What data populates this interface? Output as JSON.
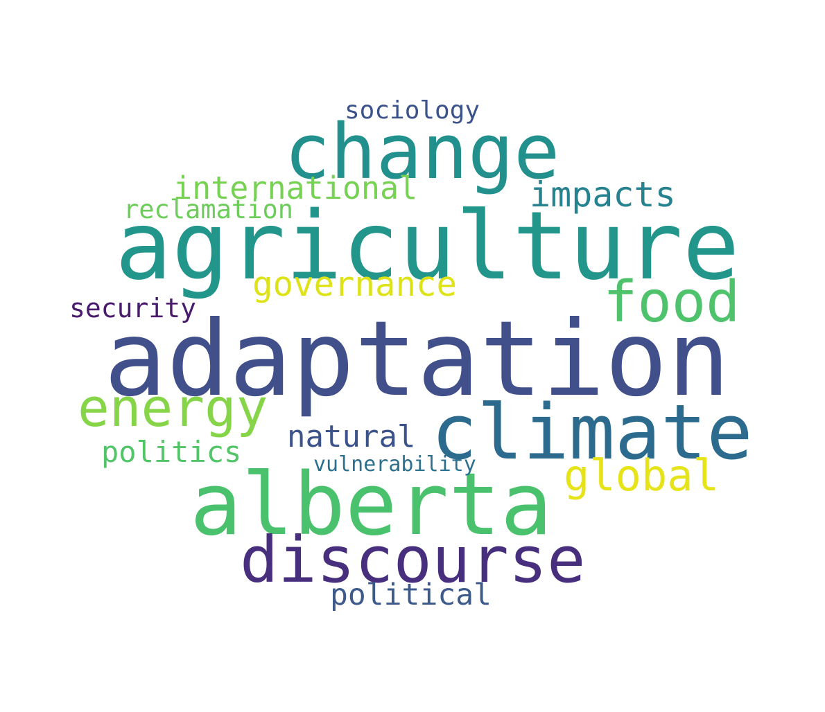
{
  "words": [
    {
      "text": "adaptation",
      "color": "#414f8a"
    },
    {
      "text": "agriculture",
      "color": "#23968b"
    },
    {
      "text": "alberta",
      "color": "#4ac16d"
    },
    {
      "text": "climate",
      "color": "#2c6b8e"
    },
    {
      "text": "change",
      "color": "#22908c"
    },
    {
      "text": "discourse",
      "color": "#472f7d"
    },
    {
      "text": "energy",
      "color": "#86d549"
    },
    {
      "text": "food",
      "color": "#4ec36b"
    },
    {
      "text": "global",
      "color": "#e6e419"
    },
    {
      "text": "governance",
      "color": "#dde318"
    },
    {
      "text": "impacts",
      "color": "#26828e"
    },
    {
      "text": "international",
      "color": "#77d153"
    },
    {
      "text": "natural",
      "color": "#3b528b"
    },
    {
      "text": "reclamation",
      "color": "#6ccd5a"
    },
    {
      "text": "politics",
      "color": "#52c569"
    },
    {
      "text": "political",
      "color": "#3e5a8b"
    },
    {
      "text": "security",
      "color": "#481b6d"
    },
    {
      "text": "sociology",
      "color": "#3b528b"
    },
    {
      "text": "vulnerability",
      "color": "#2d708e"
    }
  ]
}
